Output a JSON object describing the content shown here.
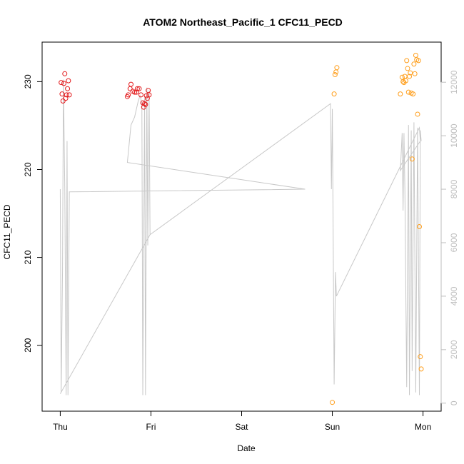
{
  "chart_data": {
    "type": "scatter",
    "title": "ATOM2 Northeast_Pacific_1 CFC11_PECD",
    "xlabel": "Date",
    "ylabel": "CFC11_PECD",
    "x_ticks": [
      "Thu",
      "Fri",
      "Sat",
      "Sun",
      "Mon"
    ],
    "x_range_days": [
      -0.2,
      4.2
    ],
    "y_ticks": [
      200,
      210,
      220,
      230
    ],
    "ylim": [
      192.5,
      234.5
    ],
    "y2_ticks": [
      0,
      2000,
      4000,
      6000,
      8000,
      10000,
      12000
    ],
    "y2lim": [
      -300,
      13500
    ],
    "grid": false,
    "colors": {
      "axis": "#000000",
      "secondary_axis": "#bebebe",
      "trace_line": "#c8c8c8",
      "series_red": "#e31a1c",
      "series_orange": "#ff9e1b"
    },
    "series": [
      {
        "color": "#e31a1c",
        "points": [
          [
            0.01,
            229.9
          ],
          [
            0.02,
            228.6
          ],
          [
            0.03,
            227.8
          ],
          [
            0.04,
            229.8
          ],
          [
            0.05,
            230.9
          ],
          [
            0.06,
            228.1
          ],
          [
            0.07,
            228.5
          ],
          [
            0.08,
            229.2
          ],
          [
            0.09,
            230.1
          ],
          [
            0.1,
            228.5
          ],
          [
            0.74,
            228.3
          ],
          [
            0.75,
            228.5
          ],
          [
            0.77,
            229.2
          ],
          [
            0.78,
            229.7
          ],
          [
            0.8,
            228.9
          ],
          [
            0.82,
            228.8
          ],
          [
            0.84,
            228.8
          ],
          [
            0.85,
            229.2
          ],
          [
            0.87,
            229.2
          ],
          [
            0.89,
            228.5
          ],
          [
            0.91,
            227.6
          ],
          [
            0.92,
            227.1
          ],
          [
            0.93,
            227.5
          ],
          [
            0.94,
            227.4
          ],
          [
            0.95,
            228.4
          ],
          [
            0.96,
            228.1
          ],
          [
            0.97,
            229.0
          ],
          [
            0.98,
            228.5
          ]
        ]
      },
      {
        "color": "#ff9e1b",
        "points": [
          [
            3.0,
            193.5
          ],
          [
            3.02,
            228.6
          ],
          [
            3.03,
            230.8
          ],
          [
            3.04,
            231.1
          ],
          [
            3.05,
            231.6
          ],
          [
            3.75,
            228.6
          ],
          [
            3.77,
            230.5
          ],
          [
            3.78,
            230.0
          ],
          [
            3.79,
            229.9
          ],
          [
            3.8,
            230.6
          ],
          [
            3.81,
            230.1
          ],
          [
            3.82,
            232.4
          ],
          [
            3.83,
            231.5
          ],
          [
            3.84,
            228.8
          ],
          [
            3.85,
            230.6
          ],
          [
            3.86,
            231.0
          ],
          [
            3.87,
            228.7
          ],
          [
            3.88,
            221.2
          ],
          [
            3.89,
            228.6
          ],
          [
            3.9,
            232.0
          ],
          [
            3.91,
            230.9
          ],
          [
            3.92,
            233.0
          ],
          [
            3.93,
            232.5
          ],
          [
            3.94,
            226.3
          ],
          [
            3.95,
            232.4
          ],
          [
            3.96,
            213.5
          ],
          [
            3.97,
            198.7
          ],
          [
            3.98,
            197.3
          ]
        ]
      }
    ],
    "trace_line": [
      [
        0.0,
        8000
      ],
      [
        0.01,
        400
      ],
      [
        0.025,
        5000
      ],
      [
        0.035,
        12100
      ],
      [
        0.05,
        8000
      ],
      [
        0.065,
        300
      ],
      [
        0.075,
        9800
      ],
      [
        0.085,
        300
      ],
      [
        0.1,
        7900
      ],
      [
        2.7,
        8000
      ],
      [
        0.74,
        9000
      ],
      [
        0.76,
        9700
      ],
      [
        0.78,
        10400
      ],
      [
        0.8,
        10550
      ],
      [
        0.82,
        10700
      ],
      [
        0.84,
        11000
      ],
      [
        0.86,
        11300
      ],
      [
        0.88,
        11500
      ],
      [
        0.9,
        11200
      ],
      [
        0.91,
        300
      ],
      [
        0.93,
        11400
      ],
      [
        0.94,
        300
      ],
      [
        0.955,
        11800
      ],
      [
        0.965,
        5900
      ],
      [
        0.98,
        11700
      ],
      [
        0.99,
        6300
      ],
      [
        0.0,
        350
      ],
      [
        0.99,
        6300
      ],
      [
        2.98,
        11200
      ],
      [
        2.99,
        8000
      ],
      [
        3.0,
        11000
      ],
      [
        3.02,
        700
      ],
      [
        3.035,
        4900
      ],
      [
        3.045,
        4000
      ],
      [
        3.96,
        10300
      ],
      [
        3.97,
        9800
      ],
      [
        3.75,
        8700
      ],
      [
        3.77,
        10100
      ],
      [
        3.78,
        7200
      ],
      [
        3.79,
        10100
      ],
      [
        3.8,
        8000
      ],
      [
        3.82,
        600
      ],
      [
        3.84,
        10400
      ],
      [
        3.85,
        300
      ],
      [
        3.87,
        10200
      ],
      [
        3.88,
        1200
      ],
      [
        3.9,
        10500
      ],
      [
        3.92,
        400
      ],
      [
        3.94,
        10300
      ],
      [
        3.96,
        300
      ],
      [
        3.97,
        10200
      ],
      [
        3.98,
        9800
      ]
    ]
  }
}
